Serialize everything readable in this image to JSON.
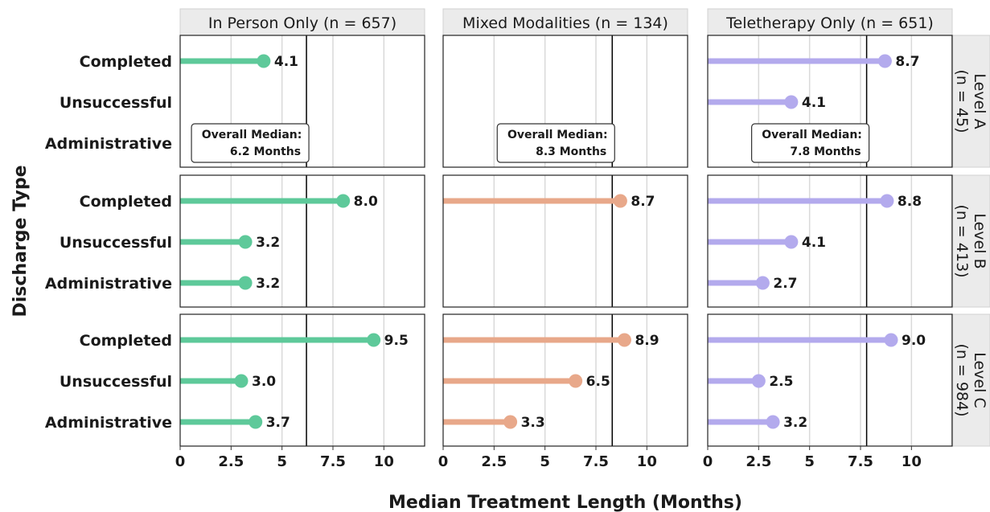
{
  "chart_data": {
    "type": "lollipop",
    "xlabel": "Median Treatment Length (Months)",
    "ylabel": "Discharge Type",
    "xlim": [
      0,
      12
    ],
    "xticks": [
      0,
      2.5,
      5,
      7.5,
      10
    ],
    "xtick_labels": [
      "0",
      "2.5",
      "5",
      "7.5",
      "10"
    ],
    "categories": [
      "Completed",
      "Unsuccessful",
      "Administrative"
    ],
    "columns": [
      {
        "label": "In Person Only (n = 657)",
        "color": "#5ec99a",
        "overall_median": 6.2,
        "median_label_1": "Overall Median:",
        "median_label_2": "6.2 Months"
      },
      {
        "label": "Mixed Modalities (n = 134)",
        "color": "#e8a88a",
        "overall_median": 8.3,
        "median_label_1": "Overall Median:",
        "median_label_2": "8.3 Months"
      },
      {
        "label": "Teletherapy Only (n = 651)",
        "color": "#b3aaed",
        "overall_median": 7.8,
        "median_label_1": "Overall Median:",
        "median_label_2": "7.8 Months"
      }
    ],
    "rows": [
      {
        "label_line1": "Level A",
        "label_line2": "(n = 45)"
      },
      {
        "label_line1": "Level B",
        "label_line2": "(n = 413)"
      },
      {
        "label_line1": "Level C",
        "label_line2": "(n = 984)"
      }
    ],
    "values": [
      [
        {
          "Completed": 4.1,
          "Unsuccessful": null,
          "Administrative": null
        },
        {
          "Completed": null,
          "Unsuccessful": null,
          "Administrative": null
        },
        {
          "Completed": 8.7,
          "Unsuccessful": 4.1,
          "Administrative": null
        }
      ],
      [
        {
          "Completed": 8.0,
          "Unsuccessful": 3.2,
          "Administrative": 3.2
        },
        {
          "Completed": 8.7,
          "Unsuccessful": null,
          "Administrative": null
        },
        {
          "Completed": 8.8,
          "Unsuccessful": 4.1,
          "Administrative": 2.7
        }
      ],
      [
        {
          "Completed": 9.5,
          "Unsuccessful": 3.0,
          "Administrative": 3.7
        },
        {
          "Completed": 8.9,
          "Unsuccessful": 6.5,
          "Administrative": 3.3
        },
        {
          "Completed": 9.0,
          "Unsuccessful": 2.5,
          "Administrative": 3.2
        }
      ]
    ],
    "value_labels": [
      [
        {
          "Completed": "4.1"
        },
        {},
        {
          "Completed": "8.7",
          "Unsuccessful": "4.1"
        }
      ],
      [
        {
          "Completed": "8.0",
          "Unsuccessful": "3.2",
          "Administrative": "3.2"
        },
        {
          "Completed": "8.7"
        },
        {
          "Completed": "8.8",
          "Unsuccessful": "4.1",
          "Administrative": "2.7"
        }
      ],
      [
        {
          "Completed": "9.5",
          "Unsuccessful": "3.0",
          "Administrative": "3.7"
        },
        {
          "Completed": "8.9",
          "Unsuccessful": "6.5",
          "Administrative": "3.3"
        },
        {
          "Completed": "9.0",
          "Unsuccessful": "2.5",
          "Administrative": "3.2"
        }
      ]
    ],
    "median_box_row": 0
  }
}
